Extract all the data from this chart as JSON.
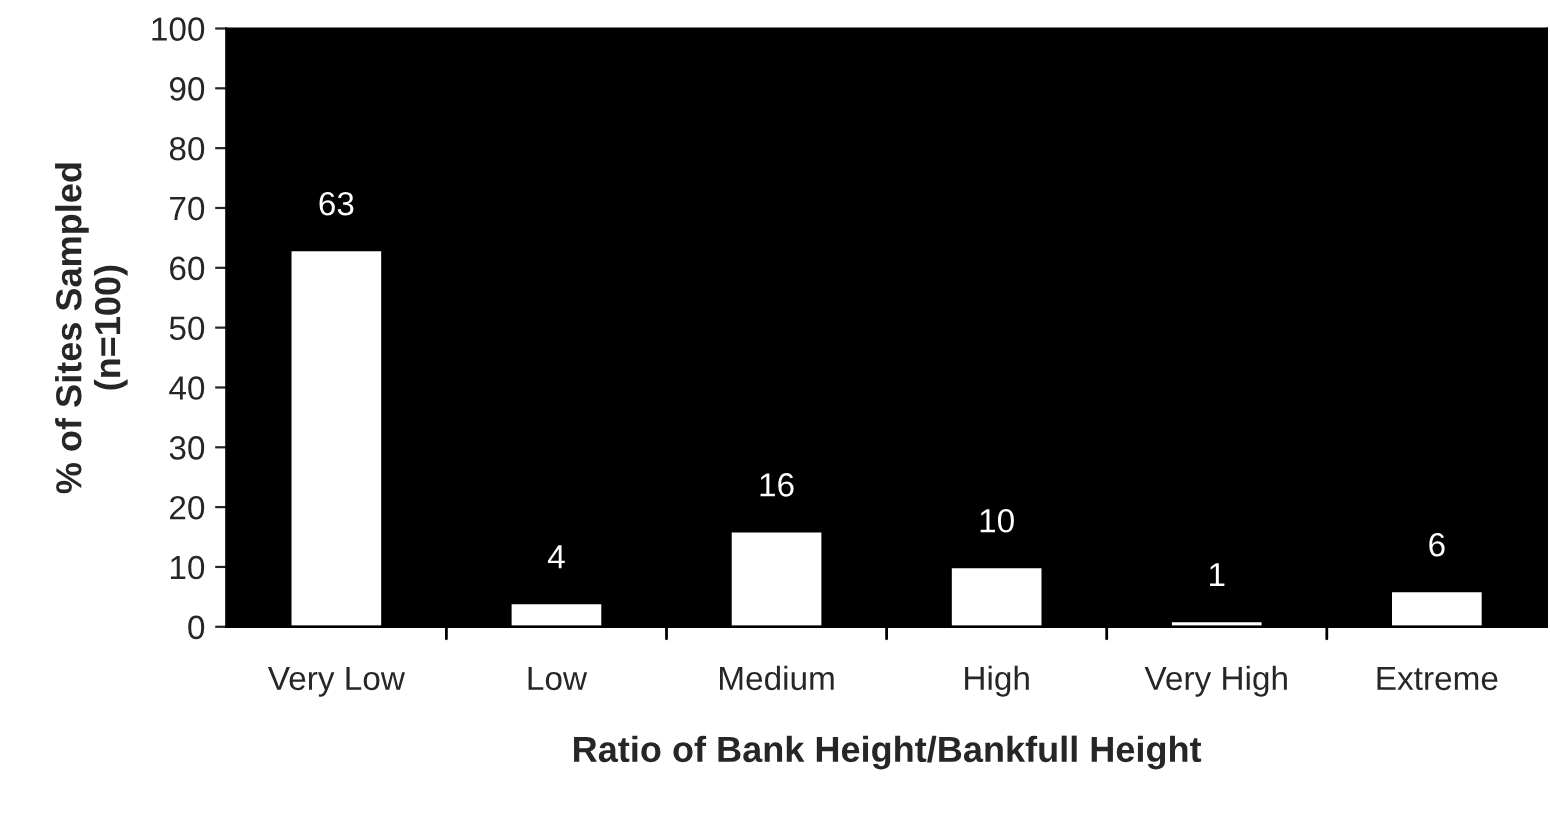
{
  "chart_data": {
    "type": "bar",
    "xlabel": "Ratio of Bank Height/Bankfull Height",
    "ylabel": "% of Sites Sampled\n(n=100)",
    "categories": [
      "Very Low",
      "Low",
      "Medium",
      "High",
      "Very High",
      "Extreme"
    ],
    "values": [
      63,
      4,
      16,
      10,
      1,
      6
    ],
    "color": "#ffffff",
    "ylim": [
      0,
      100
    ],
    "yticks": [
      0,
      10,
      20,
      30,
      40,
      50,
      60,
      70,
      80,
      90,
      100
    ],
    "data_labels": true,
    "grid": false,
    "legend": false
  }
}
